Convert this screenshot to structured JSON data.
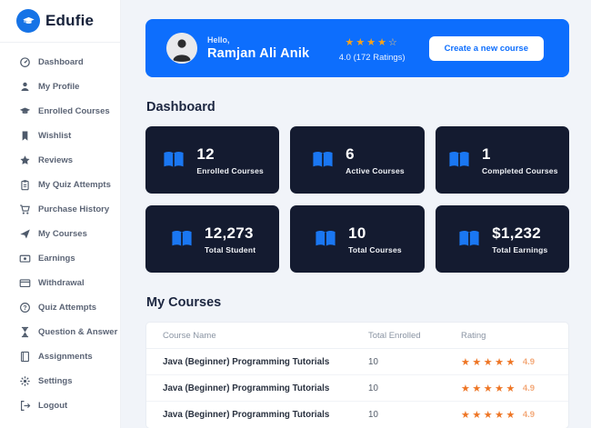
{
  "brand": {
    "name": "Edufie"
  },
  "sidebar": {
    "items": [
      {
        "label": "Dashboard",
        "icon": "dashboard-gauge-icon"
      },
      {
        "label": "My Profile",
        "icon": "user-icon"
      },
      {
        "label": "Enrolled Courses",
        "icon": "graduation-cap-icon"
      },
      {
        "label": "Wishlist",
        "icon": "bookmark-icon"
      },
      {
        "label": "Reviews",
        "icon": "star-icon"
      },
      {
        "label": "My Quiz Attempts",
        "icon": "clipboard-icon"
      },
      {
        "label": "Purchase History",
        "icon": "shopping-cart-icon"
      },
      {
        "label": "My Courses",
        "icon": "paper-plane-icon"
      },
      {
        "label": "Earnings",
        "icon": "cash-icon"
      },
      {
        "label": "Withdrawal",
        "icon": "credit-card-icon"
      },
      {
        "label": "Quiz Attempts",
        "icon": "question-circle-icon"
      },
      {
        "label": "Question & Answer",
        "icon": "hourglass-icon"
      },
      {
        "label": "Assignments",
        "icon": "notebook-icon"
      },
      {
        "label": "Settings",
        "icon": "gear-icon"
      },
      {
        "label": "Logout",
        "icon": "logout-icon"
      }
    ]
  },
  "banner": {
    "greeting": "Hello,",
    "user_name": "Ramjan Ali Anik",
    "stars_filled": 4,
    "stars_total": 5,
    "rating_text": "4.0 (172 Ratings)",
    "button_label": "Create a new course"
  },
  "dashboard": {
    "title": "Dashboard",
    "stats": [
      {
        "value": "12",
        "label": "Enrolled Courses"
      },
      {
        "value": "6",
        "label": "Active Courses"
      },
      {
        "value": "1",
        "label": "Completed Courses"
      },
      {
        "value": "12,273",
        "label": "Total Student"
      },
      {
        "value": "10",
        "label": "Total Courses"
      },
      {
        "value": "$1,232",
        "label": "Total Earnings"
      }
    ]
  },
  "my_courses": {
    "title": "My Courses",
    "columns": [
      "Course Name",
      "Total Enrolled",
      "Rating"
    ],
    "rows": [
      {
        "name": "Java (Beginner) Programming Tutorials",
        "enrolled": "10",
        "stars": 5,
        "rating": "4.9"
      },
      {
        "name": "Java (Beginner) Programming Tutorials",
        "enrolled": "10",
        "stars": 5,
        "rating": "4.9"
      },
      {
        "name": "Java (Beginner) Programming Tutorials",
        "enrolled": "10",
        "stars": 5,
        "rating": "4.9"
      }
    ]
  },
  "colors": {
    "banner_blue": "#0d6efd",
    "card_navy": "#141b30",
    "book_icon_blue": "#1a77f2",
    "banner_star_orange": "#f6a21d",
    "table_star_orange": "#ee7524"
  }
}
